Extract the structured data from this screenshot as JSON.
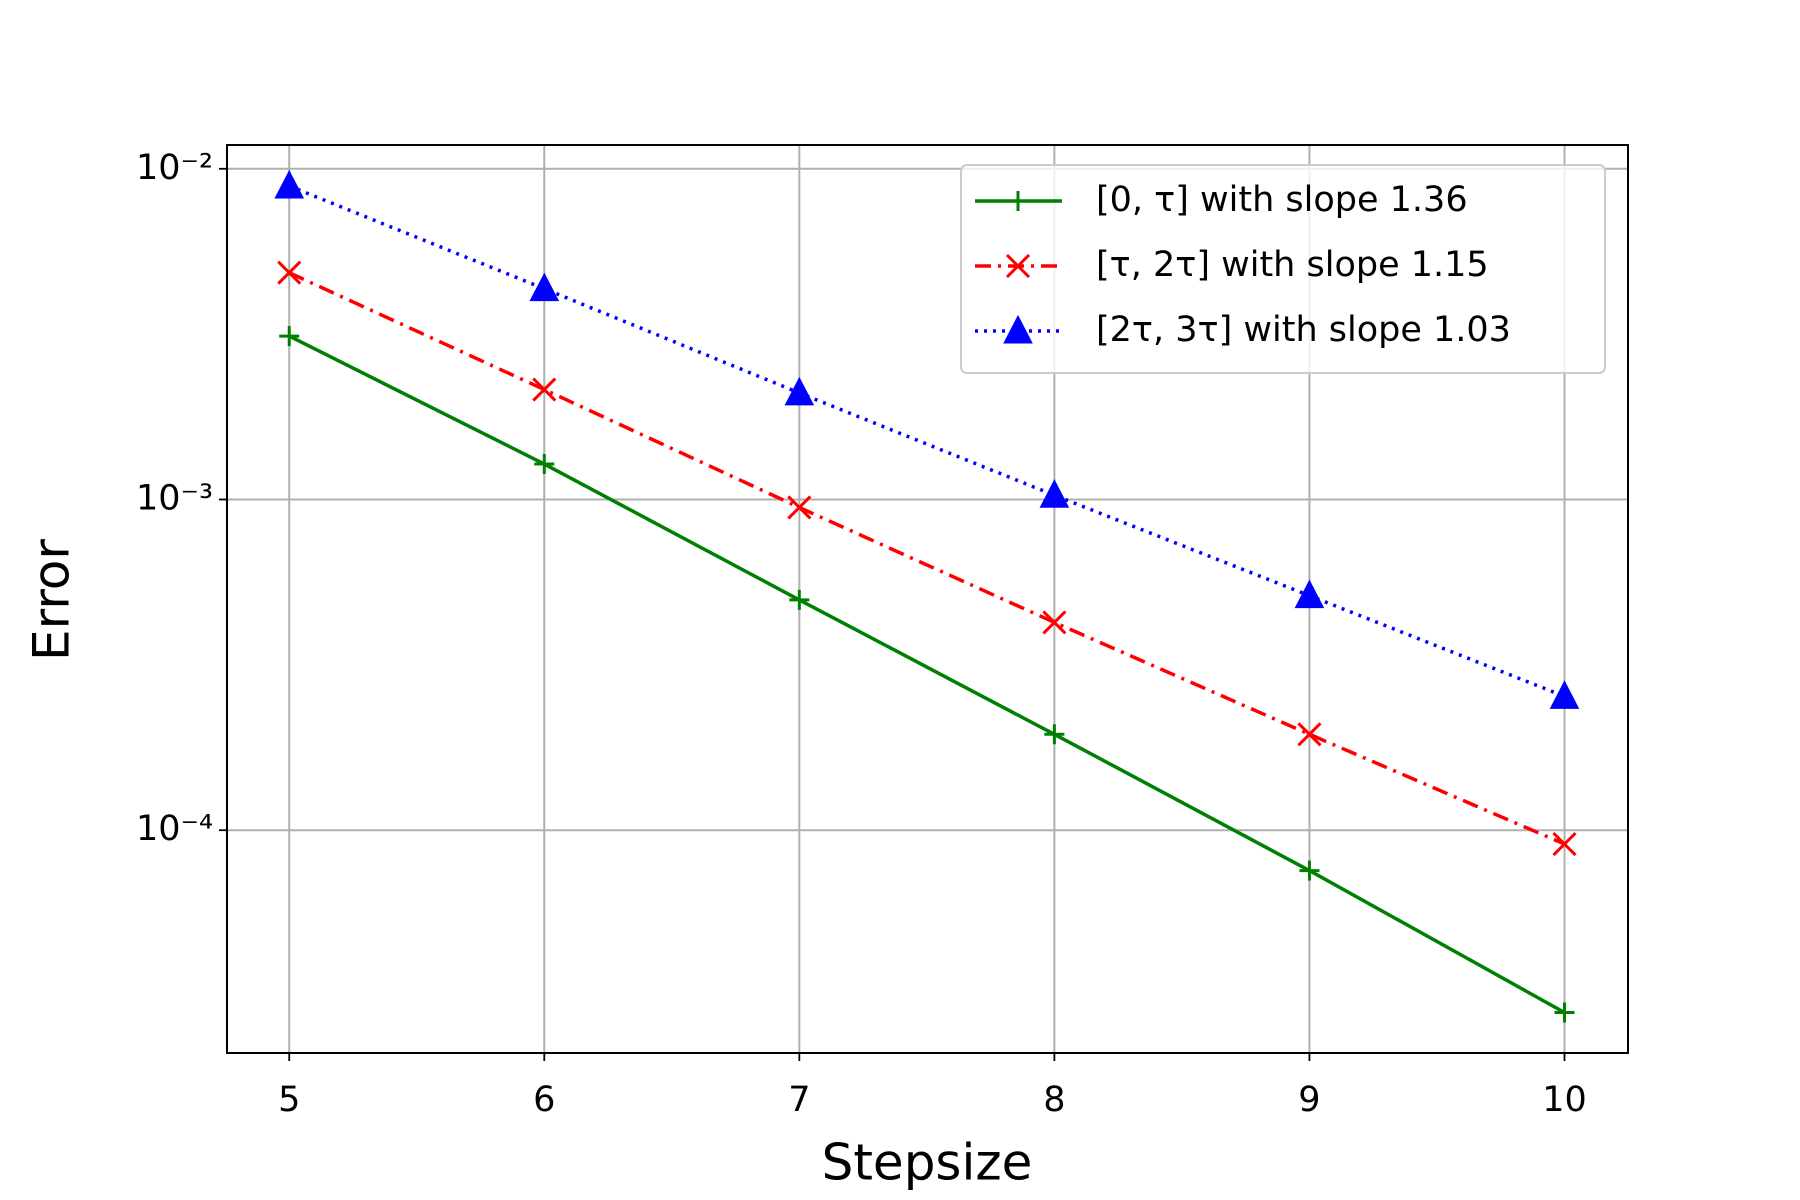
{
  "chart_data": {
    "type": "line",
    "xlabel": "Stepsize",
    "ylabel": "Error",
    "x": [
      5,
      6,
      7,
      8,
      9,
      10
    ],
    "series": [
      {
        "name": "[0, τ] with slope 1.36",
        "color": "#008000",
        "linestyle": "solid",
        "marker": "plus",
        "values": [
          0.00312,
          0.00128,
          0.000497,
          0.000195,
          7.55e-05,
          2.81e-05
        ]
      },
      {
        "name": "[τ, 2τ] with slope 1.15",
        "color": "#ff0000",
        "linestyle": "dashdot",
        "marker": "x",
        "values": [
          0.00485,
          0.00215,
          0.000946,
          0.000425,
          0.000195,
          9.08e-05
        ]
      },
      {
        "name": "[2τ, 3τ] with slope 1.03",
        "color": "#0000ff",
        "linestyle": "dotted",
        "marker": "triangle",
        "values": [
          0.00887,
          0.00434,
          0.0021,
          0.00103,
          0.000512,
          0.000254
        ]
      }
    ],
    "xlim": [
      4.756,
      10.249
    ],
    "xticks": [
      5,
      6,
      7,
      8,
      9,
      10
    ],
    "ylim": [
      2.12e-05,
      0.0118
    ],
    "ylog": true,
    "yticks": [
      {
        "value": 0.01,
        "label": "10⁻²"
      },
      {
        "value": 0.001,
        "label": "10⁻³"
      },
      {
        "value": 0.0001,
        "label": "10⁻⁴"
      }
    ],
    "grid": true,
    "legend": "upper right"
  }
}
